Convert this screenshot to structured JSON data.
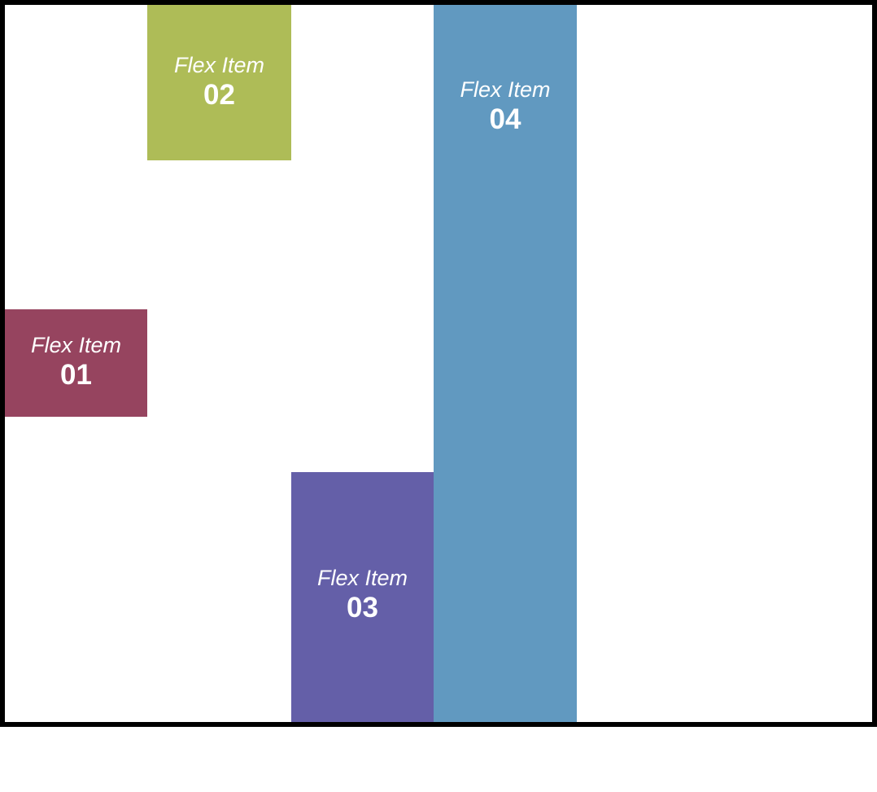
{
  "flex_items": [
    {
      "label": "Flex Item",
      "number": "01",
      "color": "#96445f"
    },
    {
      "label": "Flex Item",
      "number": "02",
      "color": "#aebc57"
    },
    {
      "label": "Flex Item",
      "number": "03",
      "color": "#645fa8"
    },
    {
      "label": "Flex Item",
      "number": "04",
      "color": "#6199c0"
    }
  ],
  "colors": {
    "container_border": "#000000",
    "background": "#ffffff",
    "text": "#ffffff"
  }
}
